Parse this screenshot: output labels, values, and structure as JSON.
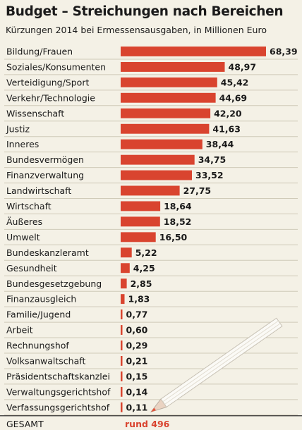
{
  "chart_data": {
    "type": "bar",
    "orientation": "horizontal",
    "title": "Budget – Streichungen nach Bereichen",
    "subtitle": "Kürzungen 2014 bei Ermessensausgaben, in Millionen Euro",
    "categories": [
      "Bildung/Frauen",
      "Soziales/Konsumenten",
      "Verteidigung/Sport",
      "Verkehr/Technologie",
      "Wissenschaft",
      "Justiz",
      "Inneres",
      "Bundesvermögen",
      "Finanzverwaltung",
      "Landwirtschaft",
      "Wirtschaft",
      "Äußeres",
      "Umwelt",
      "Bundeskanzleramt",
      "Gesundheit",
      "Bundesgesetzgebung",
      "Finanzausgleich",
      "Familie/Jugend",
      "Arbeit",
      "Rechnungshof",
      "Volksanwaltschaft",
      "Präsidentschaftskanzlei",
      "Verwaltungsgerichtshof",
      "Verfassungsgerichtshof"
    ],
    "values": [
      68.39,
      48.97,
      45.42,
      44.69,
      42.2,
      41.63,
      38.44,
      34.75,
      33.52,
      27.75,
      18.64,
      18.52,
      16.5,
      5.22,
      4.25,
      2.85,
      1.83,
      0.77,
      0.6,
      0.29,
      0.21,
      0.15,
      0.14,
      0.11
    ],
    "value_labels": [
      "68,39",
      "48,97",
      "45,42",
      "44,69",
      "42,20",
      "41,63",
      "38,44",
      "34,75",
      "33,52",
      "27,75",
      "18,64",
      "18,52",
      "16,50",
      "5,22",
      "4,25",
      "2,85",
      "1,83",
      "0,77",
      "0,60",
      "0,29",
      "0,21",
      "0,15",
      "0,14",
      "0,11"
    ],
    "total_label": "GESAMT",
    "total_value": "rund 496",
    "colors": {
      "bar": "#d9442f",
      "background": "#f4f1e6",
      "row_line": "#cfcab8",
      "total_value": "#d9442f"
    },
    "decorations": [
      "pencil-illustration"
    ],
    "grid": false
  }
}
